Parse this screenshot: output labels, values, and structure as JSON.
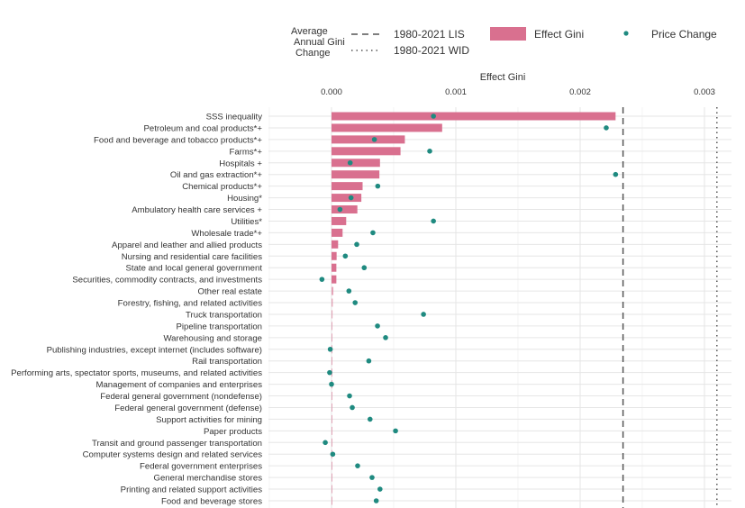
{
  "chart_data": {
    "type": "bar",
    "title": "",
    "xlabel": "Effect Gini",
    "ylabel": "",
    "xlim": [
      -0.00052,
      0.00322
    ],
    "xticks": [
      0.0,
      0.001,
      0.002,
      0.003
    ],
    "xtick_labels": [
      "0.000",
      "0.001",
      "0.002",
      "0.003"
    ],
    "grid": true,
    "legend_position": "top",
    "legend": {
      "reference_title": "Average\nAnnual Gini\nChange",
      "lis_label": "1980-2021 LIS",
      "wid_label": "1980-2021 WID",
      "bar_label": "Effect Gini",
      "point_label": "Price Change"
    },
    "reference_lines": [
      {
        "name": "1980-2021 LIS",
        "value": 0.002345,
        "style": "dashed"
      },
      {
        "name": "1980-2021 WID",
        "value": 0.0031,
        "style": "dotted"
      }
    ],
    "colors": {
      "bar": "#d9708f",
      "point": "#1f8a80",
      "lines": "#555555",
      "grid": "#e6e6e6"
    },
    "categories": [
      "SSS inequality",
      "Petroleum and coal products*+",
      "Food and beverage and tobacco products*+",
      "Farms*+",
      "Hospitals +",
      "Oil and gas extraction*+",
      "Chemical products*+",
      "Housing*",
      "Ambulatory health care services +",
      "Utilities*",
      "Wholesale trade*+",
      "Apparel and leather and allied products",
      "Nursing and residential care facilities",
      "State and local general government",
      "Securities, commodity contracts, and investments",
      "Other real estate",
      "Forestry, fishing, and related activities",
      "Truck transportation",
      "Pipeline transportation",
      "Warehousing and storage",
      "Publishing industries, except internet (includes software)",
      "Rail transportation",
      "Performing arts, spectator sports, museums, and related activities",
      "Management of companies and enterprises",
      "Federal general government (nondefense)",
      "Federal general government (defense)",
      "Support activities for mining",
      "Paper products",
      "Transit and ground passenger transportation",
      "Computer systems design and related services",
      "Federal government enterprises",
      "General merchandise stores",
      "Printing and related support activities",
      "Food and beverage stores"
    ],
    "series": [
      {
        "name": "Effect Gini",
        "kind": "bar",
        "values": [
          0.002285,
          0.00089,
          0.00059,
          0.000555,
          0.00039,
          0.000385,
          0.00025,
          0.00024,
          0.000208,
          0.000118,
          8.9e-05,
          5.3e-05,
          4.1e-05,
          3.9e-05,
          3.9e-05,
          1.5e-05,
          1e-05,
          8e-06,
          6e-06,
          6e-06,
          5e-06,
          5e-06,
          4e-06,
          4e-06,
          4e-06,
          4e-06,
          3e-06,
          3e-06,
          3e-06,
          3e-06,
          3e-06,
          2e-06,
          2e-06,
          2e-06
        ]
      },
      {
        "name": "Price Change",
        "kind": "point",
        "values": [
          0.00082,
          0.00221,
          0.000345,
          0.00079,
          0.00015,
          0.002285,
          0.000372,
          0.000157,
          6.8e-05,
          0.00082,
          0.000333,
          0.000203,
          0.000111,
          0.000263,
          -7.7e-05,
          0.00014,
          0.00019,
          0.00074,
          0.00037,
          0.000435,
          -1e-05,
          0.0003,
          -1.5e-05,
          0.0,
          0.000145,
          0.000167,
          0.00031,
          0.000515,
          -5e-05,
          1e-05,
          0.00021,
          0.000326,
          0.00039,
          0.00036
        ]
      }
    ]
  }
}
